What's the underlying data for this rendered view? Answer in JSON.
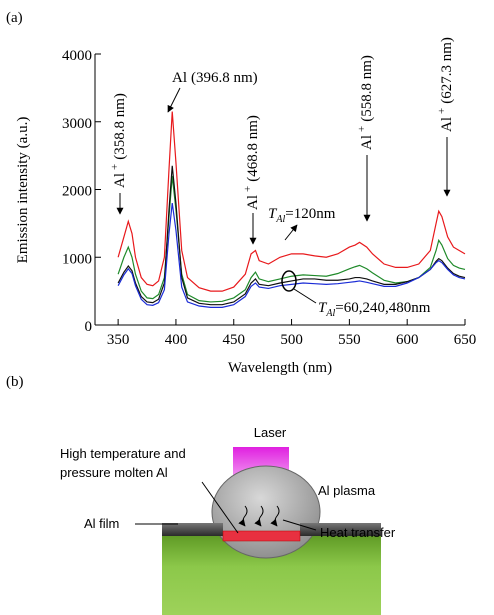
{
  "panels": [
    "(a)",
    "(b)"
  ],
  "chart_data": {
    "type": "line",
    "xlabel": "Wavelength (nm)",
    "ylabel": "Emission intensity (a.u.)",
    "xlim": [
      330,
      650
    ],
    "xticks": [
      350,
      400,
      450,
      500,
      550,
      600,
      650
    ],
    "ylim": [
      0,
      4000
    ],
    "yticks": [
      0,
      1000,
      2000,
      3000,
      4000
    ],
    "x": [
      350,
      355,
      358.8,
      362,
      365,
      370,
      375,
      380,
      385,
      390,
      394,
      396.8,
      400,
      405,
      410,
      420,
      430,
      440,
      450,
      460,
      465,
      468.8,
      472,
      480,
      490,
      500,
      510,
      520,
      530,
      540,
      550,
      555,
      558.8,
      565,
      570,
      580,
      590,
      600,
      610,
      620,
      625,
      627.3,
      630,
      635,
      640,
      645,
      650
    ],
    "series": [
      {
        "color": "#e8191c",
        "values": [
          1000,
          1300,
          1530,
          1350,
          1000,
          700,
          600,
          580,
          650,
          1000,
          2300,
          3150,
          2400,
          1100,
          700,
          550,
          500,
          500,
          560,
          750,
          1050,
          1100,
          950,
          900,
          1000,
          1050,
          1050,
          1020,
          1000,
          1050,
          1150,
          1180,
          1220,
          1150,
          1050,
          900,
          850,
          850,
          900,
          1100,
          1500,
          1680,
          1600,
          1300,
          1150,
          1100,
          1050
        ]
      },
      {
        "color": "#1f8a2a",
        "values": [
          750,
          1000,
          1150,
          1000,
          750,
          500,
          400,
          390,
          450,
          700,
          1600,
          2200,
          1700,
          750,
          450,
          360,
          340,
          350,
          400,
          520,
          700,
          780,
          680,
          640,
          680,
          720,
          740,
          730,
          720,
          760,
          830,
          860,
          880,
          830,
          770,
          660,
          620,
          640,
          700,
          850,
          1100,
          1250,
          1180,
          980,
          880,
          840,
          820
        ]
      },
      {
        "color": "#111111",
        "values": [
          620,
          780,
          870,
          800,
          620,
          420,
          340,
          330,
          380,
          620,
          1700,
          2350,
          1800,
          700,
          400,
          320,
          300,
          300,
          340,
          460,
          620,
          680,
          600,
          580,
          620,
          650,
          680,
          680,
          660,
          660,
          680,
          700,
          700,
          680,
          650,
          600,
          600,
          640,
          700,
          820,
          940,
          980,
          950,
          840,
          760,
          720,
          700
        ]
      },
      {
        "color": "#1a2bd6",
        "values": [
          580,
          740,
          830,
          760,
          580,
          380,
          300,
          290,
          330,
          520,
          1350,
          1800,
          1400,
          560,
          340,
          280,
          260,
          260,
          300,
          420,
          570,
          620,
          560,
          540,
          580,
          600,
          620,
          610,
          600,
          610,
          630,
          640,
          650,
          630,
          610,
          570,
          570,
          620,
          700,
          820,
          920,
          950,
          920,
          820,
          740,
          700,
          680
        ]
      }
    ],
    "annotations": [
      {
        "element": "Al",
        "charge": "+",
        "wavelength": "(358.8 nm)"
      },
      {
        "element": "Al",
        "wavelength": "(396.8 nm)"
      },
      {
        "element": "Al",
        "charge": "+",
        "wavelength": "(468.8 nm)"
      },
      {
        "element": "Al",
        "charge": "+",
        "wavelength": "(558.8 nm)"
      },
      {
        "element": "Al",
        "charge": "+",
        "wavelength": "(627.3 nm)"
      }
    ],
    "thickness_labels": [
      {
        "symbol": "T",
        "subscript": "Al",
        "value": "=120nm"
      },
      {
        "symbol": "T",
        "subscript": "Al",
        "value": "=60,240,480nm"
      }
    ]
  },
  "diagram": {
    "laser": "Laser",
    "molten": [
      "High temperature and",
      "pressure molten Al"
    ],
    "plasma": "Al plasma",
    "film": "Al film",
    "heat": "Heat transfer"
  }
}
